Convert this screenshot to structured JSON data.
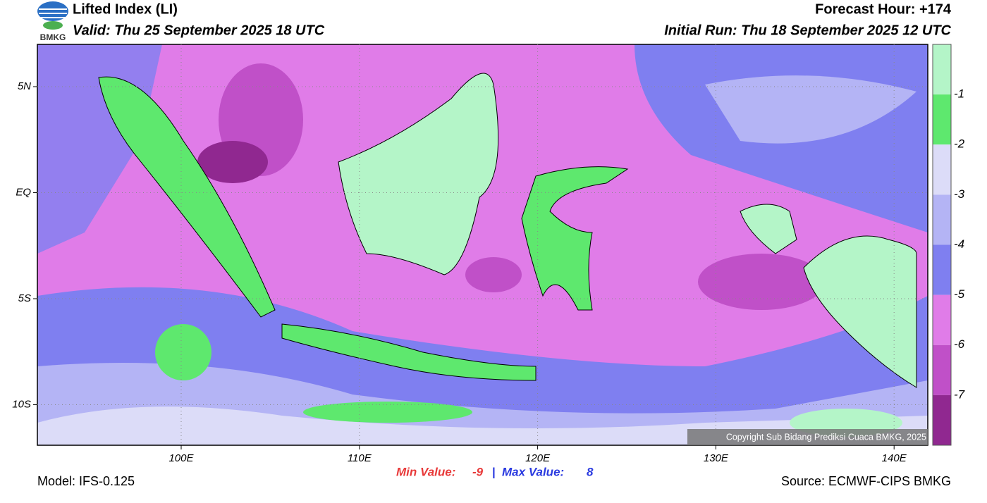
{
  "header": {
    "logo": "BMKG",
    "title": "Lifted Index (LI)",
    "valid": "Valid: Thu 25 September 2025 18 UTC",
    "forecast_hour": "Forecast Hour: +174",
    "initial_run": "Initial Run: Thu 18 September 2025 12 UTC"
  },
  "map": {
    "lat_ticks": [
      "5N",
      "EQ",
      "5S",
      "10S"
    ],
    "lon_ticks": [
      "100E",
      "110E",
      "120E",
      "130E",
      "140E"
    ],
    "copyright": "Copyright Sub Bidang Prediksi Cuaca BMKG, 2025"
  },
  "colorbar": {
    "colors": [
      "#b4f5c8",
      "#5ee86e",
      "#dcdcf8",
      "#b4b4f5",
      "#7f7ff0",
      "#e07ce8",
      "#c050c8",
      "#902890"
    ],
    "ticks": [
      "-1",
      "-2",
      "-3",
      "-4",
      "-5",
      "-6",
      "-7"
    ]
  },
  "footer": {
    "model": "Model: IFS-0.125",
    "min_label": "Min Value:",
    "min_value": "-9",
    "separator": "|",
    "max_label": "Max Value:",
    "max_value": "8",
    "source": "Source: ECMWF-CIPS BMKG"
  }
}
